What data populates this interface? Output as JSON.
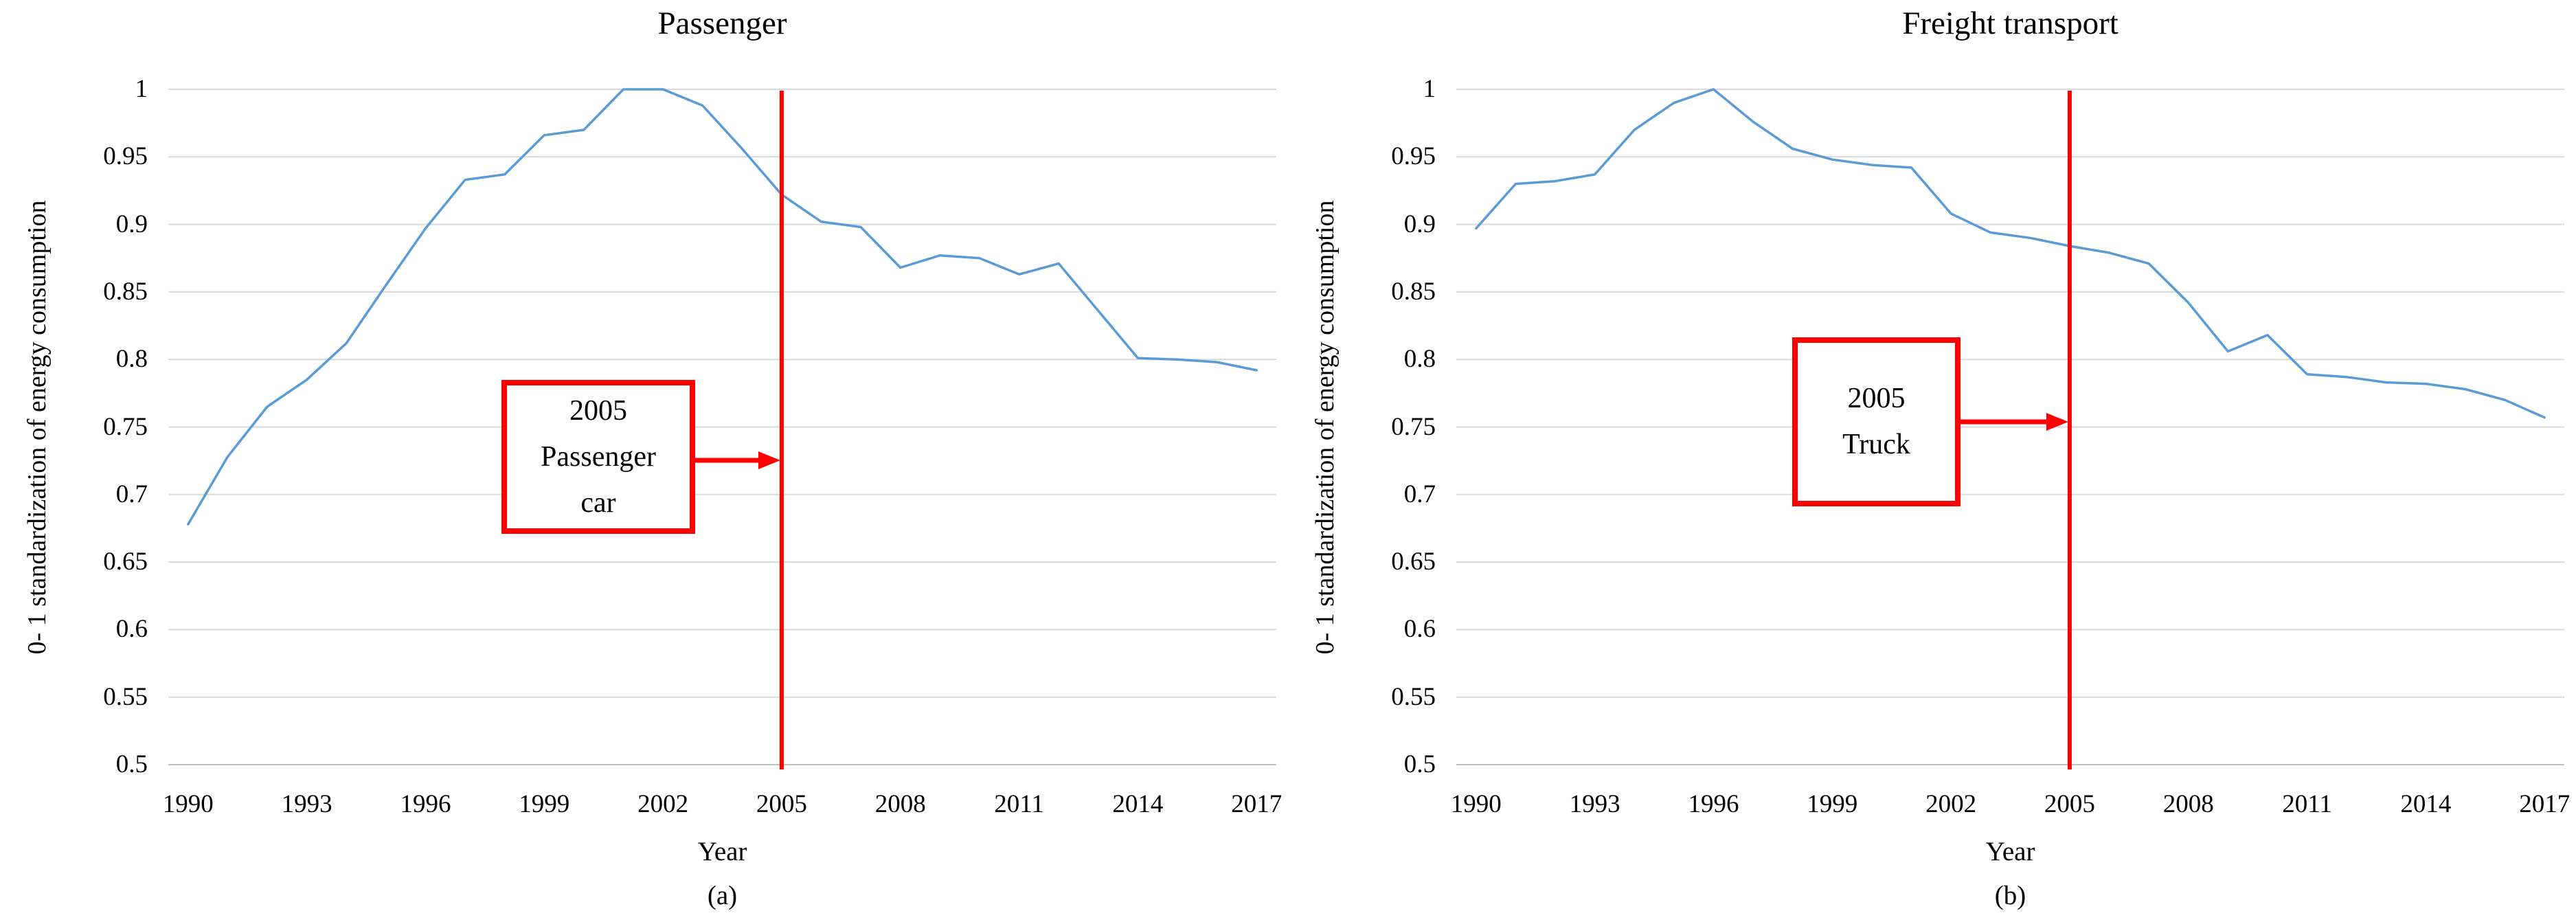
{
  "figure": {
    "background": "#ffffff",
    "text_color": "#000000",
    "panels": [
      {
        "id": "a",
        "title": "Passenger",
        "panel_label": "(a)"
      },
      {
        "id": "b",
        "title": "Freight transport",
        "panel_label": "(b)"
      }
    ]
  },
  "chart_data": [
    {
      "type": "line",
      "title": "Passenger",
      "xlabel": "Year",
      "ylabel": "0- 1 standardization of energy consumption",
      "panel_label": "(a)",
      "legend_position": "none",
      "grid": true,
      "ylim": [
        0.5,
        1.0
      ],
      "ytick_step": 0.05,
      "ytick_labels": [
        "1",
        "0.95",
        "0.9",
        "0.85",
        "0.8",
        "0.75",
        "0.7",
        "0.65",
        "0.6",
        "0.55",
        "0.5"
      ],
      "xticks": [
        1990,
        1993,
        1996,
        1999,
        2002,
        2005,
        2008,
        2011,
        2014,
        2017
      ],
      "x": [
        1990,
        1991,
        1992,
        1993,
        1994,
        1995,
        1996,
        1997,
        1998,
        1999,
        2000,
        2001,
        2002,
        2003,
        2004,
        2005,
        2006,
        2007,
        2008,
        2009,
        2010,
        2011,
        2012,
        2013,
        2014,
        2015,
        2016,
        2017
      ],
      "values": [
        0.678,
        0.728,
        0.765,
        0.785,
        0.812,
        0.855,
        0.897,
        0.933,
        0.937,
        0.966,
        0.97,
        1.0,
        1.0,
        0.988,
        0.956,
        0.922,
        0.902,
        0.898,
        0.868,
        0.877,
        0.875,
        0.863,
        0.871,
        0.836,
        0.801,
        0.8,
        0.798,
        0.792
      ],
      "series_color": "#5b9bd5",
      "grid_color": "#d9d9d9",
      "axis_line_color": "#bfbfbf",
      "annotation": {
        "vline_year": 2005,
        "vline_color": "#ff0000",
        "box_text_lines": [
          "2005",
          "Passenger",
          "car"
        ],
        "box_color": "#ff0000",
        "arrow": "from-box-to-vline"
      }
    },
    {
      "type": "line",
      "title": "Freight transport",
      "xlabel": "Year",
      "ylabel": "0- 1 standardization of energy consumption",
      "panel_label": "(b)",
      "legend_position": "none",
      "grid": true,
      "ylim": [
        0.5,
        1.0
      ],
      "ytick_step": 0.05,
      "ytick_labels": [
        "1",
        "0.95",
        "0.9",
        "0.85",
        "0.8",
        "0.75",
        "0.7",
        "0.65",
        "0.6",
        "0.55",
        "0.5"
      ],
      "xticks": [
        1990,
        1993,
        1996,
        1999,
        2002,
        2005,
        2008,
        2011,
        2014,
        2017
      ],
      "x": [
        1990,
        1991,
        1992,
        1993,
        1994,
        1995,
        1996,
        1997,
        1998,
        1999,
        2000,
        2001,
        2002,
        2003,
        2004,
        2005,
        2006,
        2007,
        2008,
        2009,
        2010,
        2011,
        2012,
        2013,
        2014,
        2015,
        2016,
        2017
      ],
      "values": [
        0.897,
        0.93,
        0.932,
        0.937,
        0.97,
        0.99,
        1.0,
        0.976,
        0.956,
        0.948,
        0.944,
        0.942,
        0.908,
        0.894,
        0.89,
        0.884,
        0.879,
        0.871,
        0.842,
        0.806,
        0.818,
        0.789,
        0.787,
        0.783,
        0.782,
        0.778,
        0.77,
        0.757
      ],
      "series_color": "#5b9bd5",
      "grid_color": "#d9d9d9",
      "axis_line_color": "#bfbfbf",
      "annotation": {
        "vline_year": 2005,
        "vline_color": "#ff0000",
        "box_text_lines": [
          "2005",
          "Truck"
        ],
        "box_color": "#ff0000",
        "arrow": "from-box-to-vline"
      }
    }
  ]
}
